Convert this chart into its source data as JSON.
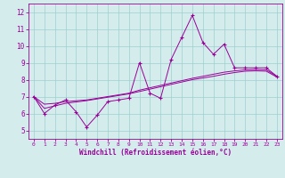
{
  "x": [
    0,
    1,
    2,
    3,
    4,
    5,
    6,
    7,
    8,
    9,
    10,
    11,
    12,
    13,
    14,
    15,
    16,
    17,
    18,
    19,
    20,
    21,
    22,
    23
  ],
  "y_main": [
    7.0,
    6.0,
    6.5,
    6.8,
    6.1,
    5.2,
    5.9,
    6.7,
    6.8,
    6.9,
    9.0,
    7.2,
    6.9,
    9.2,
    10.5,
    11.8,
    10.2,
    9.5,
    10.1,
    8.7,
    8.7,
    8.7,
    8.7,
    8.2
  ],
  "y_smooth1": [
    7.0,
    6.55,
    6.6,
    6.7,
    6.75,
    6.8,
    6.9,
    7.0,
    7.1,
    7.2,
    7.38,
    7.52,
    7.66,
    7.8,
    7.94,
    8.08,
    8.2,
    8.32,
    8.44,
    8.52,
    8.58,
    8.6,
    8.58,
    8.2
  ],
  "y_smooth2": [
    7.0,
    6.3,
    6.45,
    6.6,
    6.68,
    6.76,
    6.86,
    6.96,
    7.06,
    7.16,
    7.3,
    7.44,
    7.58,
    7.72,
    7.86,
    8.0,
    8.1,
    8.2,
    8.32,
    8.42,
    8.5,
    8.52,
    8.5,
    8.15
  ],
  "line_color": "#990099",
  "bg_color": "#d4ecec",
  "grid_color": "#9ecece",
  "xlabel": "Windchill (Refroidissement éolien,°C)",
  "ylim": [
    4.5,
    12.5
  ],
  "xlim": [
    -0.5,
    23.5
  ],
  "yticks": [
    5,
    6,
    7,
    8,
    9,
    10,
    11,
    12
  ],
  "xticks": [
    0,
    1,
    2,
    3,
    4,
    5,
    6,
    7,
    8,
    9,
    10,
    11,
    12,
    13,
    14,
    15,
    16,
    17,
    18,
    19,
    20,
    21,
    22,
    23
  ]
}
